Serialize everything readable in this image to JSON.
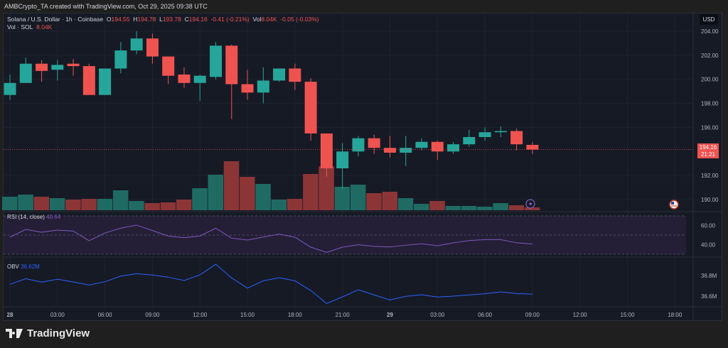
{
  "caption": "AMBCrypto_TA created with TradingView.com, Oct 29, 2025 09:38 UTC",
  "legend": {
    "symbol": "Solana / U.S. Dollar · 1h · Coinbase",
    "o_label": "O",
    "o": "194.55",
    "h_label": "H",
    "h": "194.78",
    "l_label": "L",
    "l": "193.78",
    "c_label": "C",
    "c": "194.16",
    "change": "-0.41 (-0.21%)",
    "vol_label": "Vol",
    "vol": "8.04K",
    "vol_change": "-0.05 (-0.03%)",
    "vol_line_label": "Vol · SOL",
    "vol_line_value": "8.04K"
  },
  "currency": "USD",
  "price_tag": {
    "price": "194.16",
    "countdown": "21:21"
  },
  "rsi": {
    "label": "RSI (14, close)",
    "value": "40.64"
  },
  "obv": {
    "label": "OBV",
    "value": "36.62M"
  },
  "brand": "TradingView",
  "colors": {
    "up": "#26a69a",
    "down": "#ef5350",
    "up_vol": "#1f6b64",
    "down_vol": "#8c3537",
    "rsi": "#7e57c2",
    "obv": "#2962ff",
    "bg": "#161a25"
  },
  "chart_data": {
    "type": "candlestick",
    "price_axis": {
      "ticks": [
        "204.00",
        "202.00",
        "200.00",
        "198.00",
        "196.00",
        "192.00",
        "190.00"
      ],
      "values": [
        204,
        202,
        200,
        198,
        196,
        192,
        190
      ],
      "range": [
        189.2,
        205
      ]
    },
    "time_axis": {
      "ticks": [
        "28",
        "03:00",
        "06:00",
        "09:00",
        "12:00",
        "15:00",
        "18:00",
        "21:00",
        "29",
        "03:00",
        "06:00",
        "09:00",
        "12:00",
        "15:00",
        "18:00"
      ],
      "hour_index": [
        0,
        3,
        6,
        9,
        12,
        15,
        18,
        21,
        24,
        27,
        30,
        33,
        36,
        39,
        42
      ]
    },
    "ohlc": [
      [
        198.7,
        200.4,
        198.3,
        199.7
      ],
      [
        199.7,
        201.8,
        199.7,
        201.3
      ],
      [
        201.3,
        201.6,
        199.8,
        200.7
      ],
      [
        200.8,
        201.6,
        199.9,
        201.2
      ],
      [
        201.3,
        201.7,
        200.3,
        201.1
      ],
      [
        201.1,
        201.3,
        198.7,
        198.7
      ],
      [
        198.7,
        200.9,
        198.7,
        200.9
      ],
      [
        200.9,
        203.1,
        200.5,
        202.4
      ],
      [
        202.4,
        204.0,
        202.1,
        203.4
      ],
      [
        203.4,
        203.8,
        201.3,
        201.9
      ],
      [
        201.9,
        201.9,
        199.6,
        200.3
      ],
      [
        200.4,
        201.0,
        199.3,
        199.7
      ],
      [
        199.7,
        200.4,
        198.2,
        200.3
      ],
      [
        200.2,
        203.1,
        200.0,
        202.8
      ],
      [
        202.8,
        202.9,
        196.7,
        199.6
      ],
      [
        199.6,
        200.8,
        198.3,
        198.9
      ],
      [
        198.9,
        201.0,
        198.0,
        199.9
      ],
      [
        199.9,
        200.9,
        199.8,
        200.9
      ],
      [
        200.9,
        201.3,
        199.1,
        199.8
      ],
      [
        199.8,
        200.1,
        194.9,
        195.5
      ],
      [
        195.5,
        195.5,
        191.9,
        192.6
      ],
      [
        192.6,
        194.7,
        190.9,
        194.0
      ],
      [
        194.0,
        195.3,
        193.6,
        195.1
      ],
      [
        195.1,
        195.4,
        193.8,
        194.3
      ],
      [
        194.3,
        195.3,
        193.5,
        193.9
      ],
      [
        193.9,
        195.3,
        192.8,
        194.3
      ],
      [
        194.3,
        195.1,
        194.1,
        194.8
      ],
      [
        194.8,
        194.9,
        193.3,
        194.0
      ],
      [
        194.0,
        194.8,
        193.8,
        194.6
      ],
      [
        194.6,
        195.8,
        194.4,
        195.2
      ],
      [
        195.2,
        196.0,
        194.9,
        195.6
      ],
      [
        195.6,
        196.1,
        195.2,
        195.7
      ],
      [
        195.7,
        195.9,
        194.1,
        194.6
      ],
      [
        194.55,
        194.78,
        193.78,
        194.16
      ]
    ],
    "volume_k": [
      38,
      44,
      38,
      34,
      30,
      32,
      32,
      56,
      26,
      20,
      22,
      30,
      62,
      100,
      138,
      94,
      74,
      30,
      32,
      102,
      124,
      66,
      72,
      48,
      52,
      34,
      18,
      26,
      12,
      12,
      10,
      20,
      14,
      8.04
    ],
    "rsi": {
      "ticks": [
        "60.00",
        "40.00"
      ],
      "values": [
        47.8,
        55.9,
        53,
        55.2,
        54.2,
        44.1,
        52.2,
        57.2,
        60.4,
        54.7,
        49,
        47.3,
        49,
        57.2,
        46.8,
        44.8,
        48,
        51,
        47.8,
        37.4,
        32,
        37.4,
        39.9,
        38.2,
        37.7,
        39.4,
        40.9,
        38.9,
        41.9,
        44.3,
        45.3,
        45.3,
        41.9,
        40.64
      ]
    },
    "obv_m": {
      "ticks": [
        "36.8M",
        "36.6M"
      ],
      "values": [
        36.715,
        36.77,
        36.736,
        36.765,
        36.738,
        36.708,
        36.74,
        36.795,
        36.818,
        36.805,
        36.784,
        36.752,
        36.807,
        36.91,
        36.777,
        36.678,
        36.749,
        36.779,
        36.749,
        36.655,
        36.529,
        36.593,
        36.662,
        36.612,
        36.563,
        36.598,
        36.614,
        36.591,
        36.6,
        36.612,
        36.623,
        36.641,
        36.625,
        36.62
      ]
    }
  }
}
